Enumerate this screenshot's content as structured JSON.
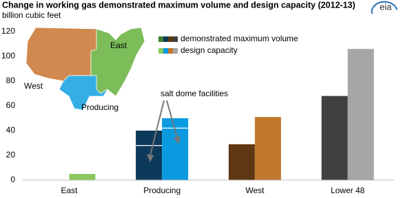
{
  "chart_data": {
    "type": "bar",
    "title": "Change in working gas demonstrated maximum volume and design capacity (2012-13)",
    "subtitle": "billion cubic feet",
    "logo": "eia",
    "categories": [
      "East",
      "Producing",
      "West",
      "Lower 48"
    ],
    "series": [
      {
        "name": "demonstrated maximum volume",
        "colors": [
          "#3f7f2a",
          "#0c3a5a",
          "#5e3812",
          "#404040"
        ],
        "values": [
          0,
          40,
          29,
          68
        ]
      },
      {
        "name": "design capacity",
        "colors": [
          "#8cc860",
          "#0a9ae0",
          "#c0782c",
          "#a6a6a6"
        ],
        "values": [
          5,
          50,
          51,
          106
        ]
      }
    ],
    "ylim": [
      0,
      120
    ],
    "yticks": [
      0,
      20,
      40,
      60,
      80,
      100,
      120
    ],
    "annotation": {
      "text": "salt dome facilities",
      "category": "Producing",
      "values": [
        28,
        42
      ]
    },
    "map_labels": [
      "East",
      "West",
      "Producing"
    ]
  }
}
